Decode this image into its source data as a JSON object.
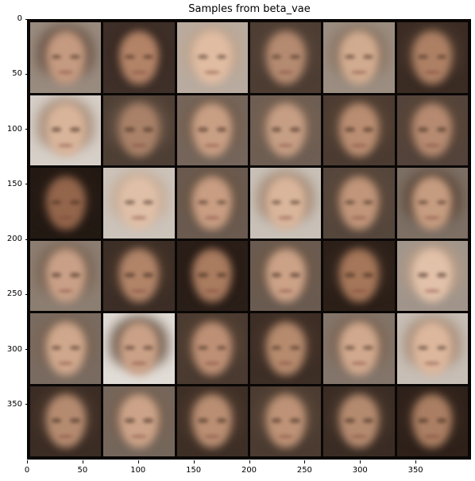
{
  "title": "Samples from beta_vae",
  "grid": {
    "rows": 6,
    "cols": 6,
    "axis_max": 400
  },
  "y_ticks": [
    {
      "value": 0,
      "label": "0"
    },
    {
      "value": 50,
      "label": "50"
    },
    {
      "value": 100,
      "label": "100"
    },
    {
      "value": 150,
      "label": "150"
    },
    {
      "value": 200,
      "label": "200"
    },
    {
      "value": 250,
      "label": "250"
    },
    {
      "value": 300,
      "label": "300"
    },
    {
      "value": 350,
      "label": "350"
    }
  ],
  "x_ticks": [
    {
      "value": 0,
      "label": "0"
    },
    {
      "value": 50,
      "label": "50"
    },
    {
      "value": 100,
      "label": "100"
    },
    {
      "value": 150,
      "label": "150"
    },
    {
      "value": 200,
      "label": "200"
    },
    {
      "value": 250,
      "label": "250"
    },
    {
      "value": 300,
      "label": "300"
    },
    {
      "value": 350,
      "label": "350"
    }
  ],
  "samples": [
    {
      "bg": "#9a8b7f",
      "hair": "#6b5446",
      "skin": "#c49a80"
    },
    {
      "bg": "#3e2f28",
      "hair": "#3a2a22",
      "skin": "#b38367"
    },
    {
      "bg": "#b9ab9f",
      "hair": "#c0a58f",
      "skin": "#e0bca2"
    },
    {
      "bg": "#4d3d33",
      "hair": "#5a463a",
      "skin": "#b48a70"
    },
    {
      "bg": "#9b8d80",
      "hair": "#8b7462",
      "skin": "#d1ab8f"
    },
    {
      "bg": "#3a2b23",
      "hair": "#4d3a2e",
      "skin": "#ad8064"
    },
    {
      "bg": "#d6cfc8",
      "hair": "#a88e7a",
      "skin": "#d8b49a"
    },
    {
      "bg": "#4e3f35",
      "hair": "#6a5546",
      "skin": "#a98168"
    },
    {
      "bg": "#75655a",
      "hair": "#77604f",
      "skin": "#c99f84"
    },
    {
      "bg": "#6e5e53",
      "hair": "#7a6352",
      "skin": "#c69e84"
    },
    {
      "bg": "#4b3b31",
      "hair": "#5c4738",
      "skin": "#b98d71"
    },
    {
      "bg": "#54433a",
      "hair": "#5d4839",
      "skin": "#b58a70"
    },
    {
      "bg": "#231913",
      "hair": "#2b1e16",
      "skin": "#93654b"
    },
    {
      "bg": "#ccc3ba",
      "hair": "#c7ad98",
      "skin": "#dfbfa7"
    },
    {
      "bg": "#6a5a4f",
      "hair": "#6d5746",
      "skin": "#c89d82"
    },
    {
      "bg": "#c9c1b8",
      "hair": "#a58a75",
      "skin": "#d9b59b"
    },
    {
      "bg": "#55463c",
      "hair": "#5e4a3b",
      "skin": "#c09579"
    },
    {
      "bg": "#7d6f64",
      "hair": "#5d4839",
      "skin": "#c69c80"
    },
    {
      "bg": "#8d7e72",
      "hair": "#7a6452",
      "skin": "#c9a087"
    },
    {
      "bg": "#3c2e26",
      "hair": "#4a372b",
      "skin": "#b18468"
    },
    {
      "bg": "#2a1e18",
      "hair": "#2a1d16",
      "skin": "#a97b5f"
    },
    {
      "bg": "#6a5b50",
      "hair": "#705a49",
      "skin": "#cca287"
    },
    {
      "bg": "#2b1f18",
      "hair": "#3a2a21",
      "skin": "#a57659"
    },
    {
      "bg": "#a1958b",
      "hair": "#b79c86",
      "skin": "#e2c1a9"
    },
    {
      "bg": "#7a6b60",
      "hair": "#7a6453",
      "skin": "#cfa78c"
    },
    {
      "bg": "#e1dcd6",
      "hair": "#6f5a4b",
      "skin": "#caa187"
    },
    {
      "bg": "#4a3a30",
      "hair": "#5a4536",
      "skin": "#bd9075"
    },
    {
      "bg": "#3d2e26",
      "hair": "#4a372b",
      "skin": "#b58a6d"
    },
    {
      "bg": "#84756a",
      "hair": "#7c6553",
      "skin": "#d0a88d"
    },
    {
      "bg": "#c7beb5",
      "hair": "#a88d78",
      "skin": "#dcb79d"
    },
    {
      "bg": "#3b2c24",
      "hair": "#4d3a2e",
      "skin": "#b58b70"
    },
    {
      "bg": "#75665b",
      "hair": "#7a6352",
      "skin": "#cca388"
    },
    {
      "bg": "#3e2f26",
      "hair": "#503c2f",
      "skin": "#b98e72"
    },
    {
      "bg": "#4b3b31",
      "hair": "#5e4a3b",
      "skin": "#bd9276"
    },
    {
      "bg": "#3a2c24",
      "hair": "#4b392d",
      "skin": "#b48a6f"
    },
    {
      "bg": "#2e211a",
      "hair": "#3a2a20",
      "skin": "#aa7e62"
    }
  ]
}
